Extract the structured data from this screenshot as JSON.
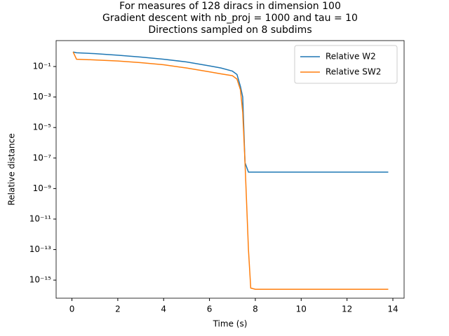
{
  "chart_data": {
    "type": "line",
    "title": [
      "For measures of 128 diracs in dimension 100",
      "Gradient descent with nb_proj = 1000 and tau = 10",
      "Directions sampled on 8 subdims"
    ],
    "xlabel": "Time (s)",
    "ylabel": "Relative distance",
    "yscale": "log",
    "legend": "upper right",
    "xlim": [
      -0.69,
      14.49
    ],
    "ylim": [
      6.5e-17,
      5
    ],
    "xticks": [
      0,
      2,
      4,
      6,
      8,
      10,
      12,
      14
    ],
    "yticks": [
      {
        "value": 0.1,
        "label": "10⁻¹"
      },
      {
        "value": 0.001,
        "label": "10⁻³"
      },
      {
        "value": 1e-05,
        "label": "10⁻⁵"
      },
      {
        "value": 1e-07,
        "label": "10⁻⁷"
      },
      {
        "value": 1e-09,
        "label": "10⁻⁹"
      },
      {
        "value": 1e-11,
        "label": "10⁻¹¹"
      },
      {
        "value": 1e-13,
        "label": "10⁻¹³"
      },
      {
        "value": 1e-15,
        "label": "10⁻¹⁵"
      }
    ],
    "series": [
      {
        "name": "Relative W2",
        "color": "#1f77b4",
        "x": [
          0.05,
          0.2,
          1,
          2,
          3,
          4,
          5,
          6,
          6.5,
          7,
          7.2,
          7.35,
          7.45,
          7.55,
          7.7,
          8,
          10,
          12,
          13.8
        ],
        "values": [
          0.9,
          0.8,
          0.7,
          0.55,
          0.42,
          0.3,
          0.2,
          0.11,
          0.08,
          0.05,
          0.03,
          0.005,
          0.001,
          5e-08,
          1.2e-08,
          1.2e-08,
          1.2e-08,
          1.2e-08,
          1.2e-08
        ]
      },
      {
        "name": "Relative SW2",
        "color": "#ff7f0e",
        "x": [
          0.05,
          0.2,
          1,
          2,
          3,
          4,
          5,
          6,
          6.5,
          7,
          7.2,
          7.35,
          7.45,
          7.55,
          7.7,
          7.8,
          8,
          10,
          12,
          13.8
        ],
        "values": [
          0.9,
          0.3,
          0.27,
          0.23,
          0.18,
          0.13,
          0.08,
          0.045,
          0.033,
          0.025,
          0.015,
          0.003,
          0.0001,
          5e-08,
          1e-13,
          3e-16,
          2.5e-16,
          2.5e-16,
          2.5e-16,
          2.5e-16
        ]
      }
    ]
  }
}
